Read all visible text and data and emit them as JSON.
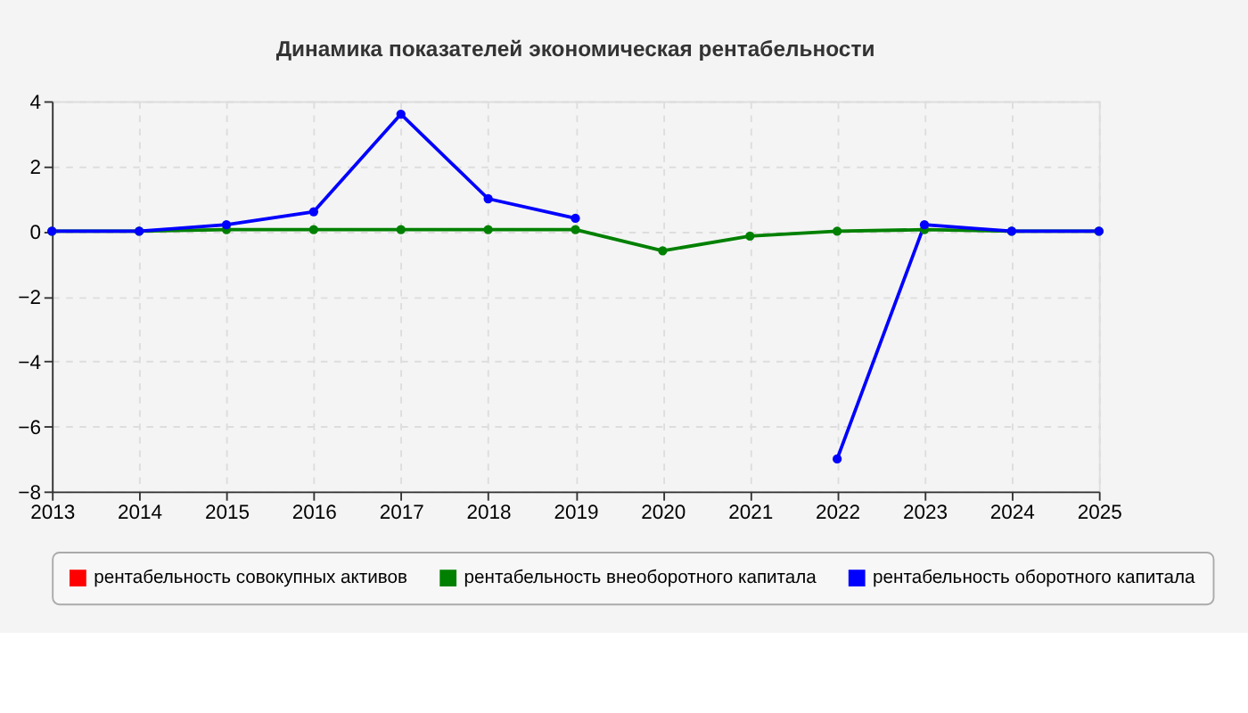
{
  "chart_data": {
    "type": "line",
    "title": "Динамика показателей экономическая рентабельности",
    "x": [
      2013,
      2014,
      2015,
      2016,
      2017,
      2018,
      2019,
      2020,
      2021,
      2022,
      2023,
      2024,
      2025
    ],
    "series": [
      {
        "name": "рентабельность совокупных активов",
        "color": "#ff0000",
        "values": [
          null,
          null,
          null,
          null,
          null,
          null,
          null,
          null,
          null,
          null,
          null,
          null,
          null
        ]
      },
      {
        "name": "рентабельность внеоборотного капитала",
        "color": "#008000",
        "values": [
          0,
          0,
          0.05,
          0.05,
          0.05,
          0.05,
          0.05,
          -0.6,
          -0.15,
          0,
          0.05,
          0,
          0
        ]
      },
      {
        "name": "рентабельность оборотного капитала",
        "color": "#0000ff",
        "values": [
          0,
          0,
          0.2,
          0.6,
          3.6,
          1.0,
          0.4,
          null,
          null,
          -7,
          0.2,
          0,
          0
        ]
      }
    ],
    "xlim": [
      2013,
      2025
    ],
    "xticks": [
      2013,
      2014,
      2015,
      2016,
      2017,
      2018,
      2019,
      2020,
      2021,
      2022,
      2023,
      2024,
      2025
    ],
    "ylim": [
      -8,
      4
    ],
    "yticks": [
      -8,
      -6,
      -4,
      -2,
      0,
      2,
      4
    ],
    "grid": true,
    "legend": "bottom",
    "marker": "circle",
    "line_style": "solid"
  }
}
